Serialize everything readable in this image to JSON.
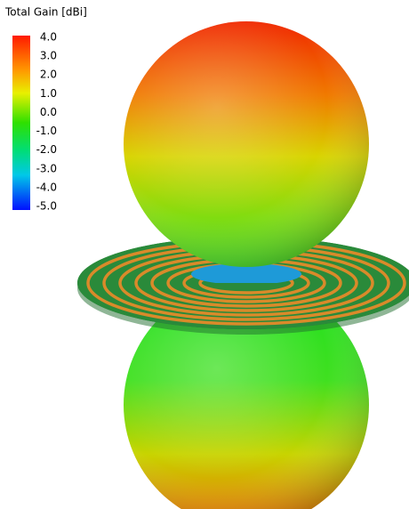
{
  "legend": {
    "title": "Total Gain [dBi]",
    "ticks": [
      "4.0",
      "3.0",
      "2.0",
      "1.0",
      "0.0",
      "-1.0",
      "-2.0",
      "-3.0",
      "-4.0",
      "-5.0"
    ]
  }
}
